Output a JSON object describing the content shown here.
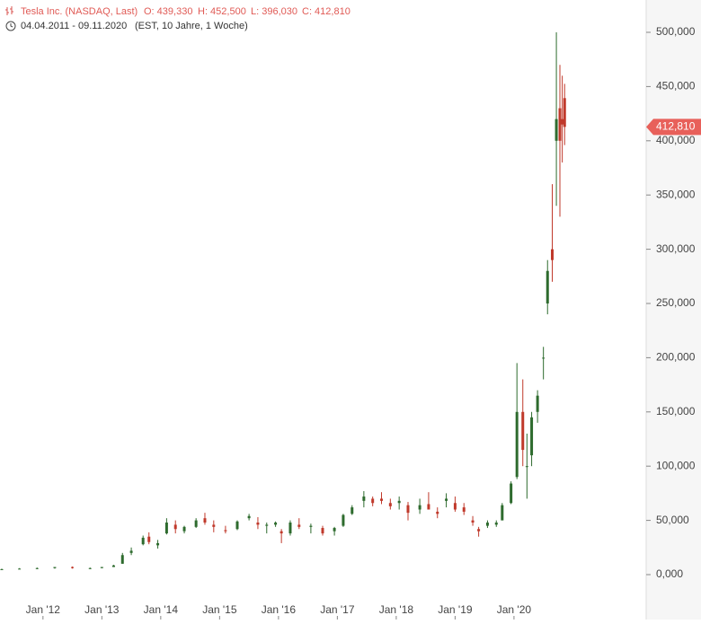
{
  "header": {
    "name": "Tesla Inc. (NASDAQ, Last)",
    "open": "O: 439,330",
    "high": "H: 452,500",
    "low": "L: 396,030",
    "close": "C: 412,810",
    "range": "04.04.2011 - 09.11.2020",
    "info": "(EST, 10 Jahre, 1 Woche)"
  },
  "chart_data": {
    "type": "candlestick",
    "x": [
      2011.3,
      2011.6,
      2011.9,
      2012.2,
      2012.5,
      2012.8,
      2013.0,
      2013.2,
      2013.35,
      2013.5,
      2013.7,
      2013.8,
      2013.95,
      2014.1,
      2014.25,
      2014.4,
      2014.6,
      2014.75,
      2014.9,
      2015.1,
      2015.3,
      2015.5,
      2015.65,
      2015.8,
      2015.95,
      2016.05,
      2016.2,
      2016.35,
      2016.55,
      2016.75,
      2016.95,
      2017.1,
      2017.25,
      2017.45,
      2017.6,
      2017.75,
      2017.9,
      2018.05,
      2018.2,
      2018.4,
      2018.55,
      2018.7,
      2018.85,
      2019.0,
      2019.15,
      2019.3,
      2019.4,
      2019.55,
      2019.7,
      2019.8,
      2019.95,
      2020.05,
      2020.15,
      2020.22,
      2020.3,
      2020.4,
      2020.5,
      2020.57,
      2020.65,
      2020.72,
      2020.78,
      2020.82,
      2020.86
    ],
    "open": [
      5000,
      5000,
      5500,
      6000,
      7000,
      6000,
      6000,
      7000,
      10000,
      20000,
      28000,
      35000,
      27000,
      38000,
      46000,
      40000,
      44000,
      52000,
      46000,
      41000,
      42000,
      52000,
      48000,
      45000,
      46000,
      40000,
      38000,
      46000,
      44000,
      43000,
      40000,
      45000,
      56000,
      68000,
      70000,
      70000,
      66000,
      66000,
      64000,
      60000,
      65000,
      58000,
      68000,
      66000,
      62000,
      50000,
      42000,
      45000,
      46000,
      50000,
      66000,
      90000,
      150000,
      100000,
      110000,
      150000,
      200000,
      250000,
      300000,
      400000,
      430000,
      420000,
      439330
    ],
    "high": [
      5500,
      6000,
      6500,
      7000,
      7500,
      6500,
      7000,
      9000,
      20000,
      25000,
      36000,
      39000,
      32000,
      52000,
      50000,
      45000,
      52000,
      57000,
      50000,
      45000,
      50000,
      56000,
      53000,
      48000,
      49000,
      42000,
      50000,
      52000,
      47000,
      45000,
      44000,
      56000,
      64000,
      77000,
      72000,
      76000,
      70000,
      72000,
      67000,
      70000,
      76000,
      62000,
      75000,
      72000,
      66000,
      54000,
      44000,
      50000,
      50000,
      66000,
      86000,
      195000,
      180000,
      130000,
      150000,
      170000,
      210000,
      290000,
      360000,
      500000,
      470000,
      460000,
      452500
    ],
    "low": [
      4500,
      5000,
      5000,
      5500,
      5500,
      5000,
      6000,
      7000,
      10000,
      18000,
      27000,
      28000,
      24000,
      37000,
      38000,
      38000,
      43000,
      46000,
      39000,
      38000,
      41000,
      50000,
      42000,
      38000,
      44000,
      29000,
      36000,
      42000,
      38000,
      36000,
      36000,
      44000,
      55000,
      62000,
      63000,
      65000,
      60000,
      60000,
      50000,
      56000,
      60000,
      52000,
      62000,
      58000,
      55000,
      45000,
      35000,
      43000,
      44000,
      50000,
      65000,
      88000,
      100000,
      70000,
      100000,
      140000,
      180000,
      240000,
      270000,
      340000,
      330000,
      380000,
      396030
    ],
    "close": [
      5000,
      5500,
      6000,
      7000,
      6000,
      6000,
      7000,
      8500,
      18000,
      22000,
      34000,
      30000,
      29000,
      48000,
      42000,
      44000,
      50000,
      48000,
      44000,
      40000,
      49000,
      54000,
      46000,
      46000,
      48000,
      38000,
      48000,
      44000,
      45000,
      38000,
      43000,
      55000,
      62000,
      72000,
      66000,
      68000,
      63000,
      68000,
      57000,
      64000,
      60000,
      56000,
      70000,
      60000,
      58000,
      48000,
      40000,
      48000,
      48000,
      64000,
      84000,
      150000,
      115000,
      100000,
      145000,
      165000,
      200000,
      280000,
      290000,
      420000,
      400000,
      415000,
      412810
    ],
    "up_color": "#2e6b2e",
    "down_color": "#c0392b",
    "xlim": [
      2011.27,
      2022.23
    ],
    "xticks": [
      {
        "value": 2012,
        "label": "Jan '12"
      },
      {
        "value": 2013,
        "label": "Jan '13"
      },
      {
        "value": 2014,
        "label": "Jan '14"
      },
      {
        "value": 2015,
        "label": "Jan '15"
      },
      {
        "value": 2016,
        "label": "Jan '16"
      },
      {
        "value": 2017,
        "label": "Jan '17"
      },
      {
        "value": 2018,
        "label": "Jan '18"
      },
      {
        "value": 2019,
        "label": "Jan '19"
      },
      {
        "value": 2020,
        "label": "Jan '20"
      }
    ],
    "ylim": [
      -41400,
      529800
    ],
    "yticks": [
      {
        "value": 0,
        "label": "0,000"
      },
      {
        "value": 50000,
        "label": "50,000"
      },
      {
        "value": 100000,
        "label": "100,000"
      },
      {
        "value": 150000,
        "label": "150,000"
      },
      {
        "value": 200000,
        "label": "200,000"
      },
      {
        "value": 250000,
        "label": "250,000"
      },
      {
        "value": 300000,
        "label": "300,000"
      },
      {
        "value": 350000,
        "label": "350,000"
      },
      {
        "value": 400000,
        "label": "400,000"
      },
      {
        "value": 450000,
        "label": "450,000"
      },
      {
        "value": 500000,
        "label": "500,000"
      }
    ],
    "last_price": 412810,
    "last_price_label": "412,810",
    "last_price_color": "#e8605a"
  }
}
